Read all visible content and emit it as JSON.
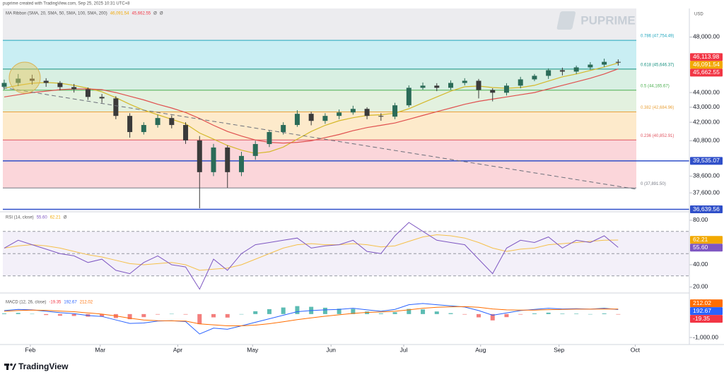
{
  "header": {
    "caption": "puprime created with TradingView.com, Sep 25, 2025 10:31 UTC+8",
    "watermark": "PUPRIME",
    "currency": "USD"
  },
  "chart_data": [
    {
      "type": "candlestick",
      "title": "MA Ribbon (SMA, 20, SMA, 50, SMA, 100, SMA, 200)",
      "readout": [
        "Ø",
        "Ø"
      ],
      "xlim": [
        -0.1,
        49.1
      ],
      "xticks": [
        {
          "value": 1.87,
          "label": "Feb"
        },
        {
          "value": 6.88,
          "label": "Mar"
        },
        {
          "value": 12.44,
          "label": "Apr"
        },
        {
          "value": 17.8,
          "label": "May"
        },
        {
          "value": 23.42,
          "label": "Jun"
        },
        {
          "value": 28.63,
          "label": "Jul"
        },
        {
          "value": 34.14,
          "label": "Aug"
        },
        {
          "value": 39.76,
          "label": "Sep"
        },
        {
          "value": 45.22,
          "label": "Oct"
        }
      ],
      "open": [
        44400,
        44670,
        44970,
        44820,
        44670,
        44380,
        44230,
        43700,
        43600,
        42420,
        41360,
        41820,
        42280,
        41820,
        40820,
        38840,
        40370,
        38840,
        39840,
        40590,
        41360,
        41820,
        42560,
        42090,
        42420,
        42650,
        42890,
        42420,
        42370,
        43130,
        44330,
        44480,
        44330,
        44670,
        44820,
        44180,
        43990,
        44480,
        44920,
        45170,
        45570,
        45470,
        45770,
        45970,
        46170
      ],
      "high": [
        44900,
        45300,
        45250,
        45000,
        44800,
        44600,
        44350,
        43900,
        43750,
        42600,
        42000,
        42500,
        42450,
        42000,
        41100,
        40600,
        40500,
        40100,
        40800,
        41500,
        42000,
        42800,
        42700,
        42600,
        42850,
        43100,
        43000,
        42600,
        43300,
        44500,
        44700,
        44650,
        44850,
        45000,
        44950,
        44300,
        44650,
        45100,
        45300,
        45700,
        45750,
        45900,
        46150,
        46400,
        46350
      ],
      "low": [
        44200,
        44450,
        44550,
        44400,
        44150,
        44000,
        43500,
        43300,
        42200,
        41000,
        41200,
        41650,
        41600,
        40600,
        36700,
        38600,
        37900,
        38600,
        39600,
        40400,
        41200,
        41700,
        41800,
        41900,
        42200,
        42500,
        42200,
        42100,
        42200,
        43000,
        44200,
        44100,
        44200,
        44500,
        43600,
        43400,
        43800,
        44300,
        44800,
        44950,
        45200,
        45300,
        45600,
        45800,
        45900
      ],
      "close": [
        44670,
        44970,
        44820,
        44670,
        44380,
        44230,
        43700,
        43600,
        42420,
        41360,
        41820,
        42280,
        41820,
        40820,
        38840,
        40370,
        38840,
        39840,
        40590,
        41360,
        41820,
        42560,
        42090,
        42420,
        42650,
        42890,
        42420,
        42370,
        43130,
        44330,
        44480,
        44330,
        44670,
        44820,
        44180,
        43990,
        44480,
        44920,
        45170,
        45570,
        45470,
        45770,
        45970,
        46170,
        46113.98
      ],
      "up_color": "#2b6b58",
      "down_color": "#3a3a3a",
      "overlays": [
        {
          "color": "#d4b82a",
          "values": [
            44300,
            44500,
            44650,
            44700,
            44650,
            44500,
            44300,
            44050,
            43650,
            43200,
            42800,
            42500,
            42200,
            41900,
            41300,
            40900,
            40500,
            40200,
            40000,
            40100,
            40400,
            40900,
            41400,
            41800,
            42100,
            42300,
            42450,
            42500,
            42600,
            42900,
            43300,
            43700,
            44100,
            44400,
            44450,
            44350,
            44300,
            44350,
            44500,
            44800,
            45100,
            45300,
            45550,
            45800,
            46091.54
          ]
        },
        {
          "color": "#e0504f",
          "values": [
            43700,
            43850,
            44000,
            44100,
            44200,
            44250,
            44250,
            44200,
            44000,
            43750,
            43500,
            43200,
            42950,
            42650,
            42250,
            41800,
            41400,
            41100,
            40850,
            40700,
            40650,
            40700,
            40800,
            41000,
            41200,
            41450,
            41650,
            41800,
            41950,
            42200,
            42450,
            42700,
            42950,
            43200,
            43400,
            43550,
            43700,
            43850,
            44000,
            44250,
            44500,
            44750,
            45000,
            45300,
            45662.55
          ]
        }
      ],
      "ylim": [
        36500,
        50200
      ],
      "log_scale": true,
      "yticks": [
        {
          "value": 48000,
          "label": "48,000.00"
        },
        {
          "value": 44000,
          "label": "44,000.00"
        },
        {
          "value": 43000,
          "label": "43,000.00"
        },
        {
          "value": 42000,
          "label": "42,000.00"
        },
        {
          "value": 40800,
          "label": "40,800.00"
        },
        {
          "value": 38600,
          "label": "38,600.00"
        },
        {
          "value": 37600,
          "label": "37,600.00"
        }
      ],
      "levels": [
        {
          "value": 47754.49,
          "label": "0.786 (47,754.49)",
          "color": "#22a6bd",
          "fill": "#c9eef3"
        },
        {
          "value": 45646.37,
          "label": "0.618 (45,646.37)",
          "color": "#15907f",
          "fill": "#d8efe2"
        },
        {
          "value": 44165.67,
          "label": "0.5 (44,165.67)",
          "color": "#4caf50",
          "fill": "#e3f1df"
        },
        {
          "value": 42684.96,
          "label": "0.382 (42,684.96)",
          "color": "#e9a23b",
          "fill": "#fdeacb"
        },
        {
          "value": 40852.91,
          "label": "0.236 (40,852.91)",
          "color": "#e05560",
          "fill": "#fbd6da"
        },
        {
          "value": 37891.5,
          "label": "0 (37,891.50)",
          "color": "#787b86"
        }
      ],
      "price_lines": [
        {
          "value": 39535.07,
          "label": "39,535.07",
          "color": "#2f4fc9"
        },
        {
          "value": 36639.56,
          "label": "36,639.56",
          "color": "#2f4fc9"
        }
      ],
      "tags": [
        {
          "value": 46113.98,
          "label": "46,113.98",
          "color": "#f23645"
        },
        {
          "value": 46091.54,
          "label": "46,091.54",
          "color": "#f2a900"
        },
        {
          "value": 45662.55,
          "label": "45,662.55",
          "color": "#f23645"
        }
      ]
    },
    {
      "type": "rsi",
      "title": "RSI (14, close)",
      "readout": [
        "Ø"
      ],
      "series": [
        {
          "color": "#7e57c2",
          "values": [
            55,
            62,
            58,
            54,
            50,
            48,
            42,
            45,
            35,
            32,
            42,
            48,
            40,
            38,
            18,
            45,
            35,
            50,
            58,
            60,
            62,
            64,
            55,
            57,
            58,
            62,
            52,
            50,
            66,
            78,
            70,
            62,
            60,
            58,
            45,
            32,
            55,
            62,
            60,
            65,
            55,
            62,
            60,
            66,
            55.6
          ]
        },
        {
          "color": "#f5c04a",
          "values": [
            55,
            57,
            58,
            57,
            55,
            52,
            49,
            47,
            44,
            41,
            40,
            41,
            42,
            40,
            35,
            36,
            37,
            40,
            45,
            50,
            55,
            58,
            59,
            58,
            58,
            59,
            58,
            56,
            57,
            61,
            65,
            67,
            66,
            64,
            60,
            55,
            52,
            54,
            55,
            58,
            59,
            60,
            61,
            62,
            62.21
          ]
        }
      ],
      "ylim": [
        14.6,
        87.6
      ],
      "yticks": [
        {
          "value": 80,
          "label": "80.00"
        },
        {
          "value": 40,
          "label": "40.00"
        },
        {
          "value": 20,
          "label": "20.00"
        }
      ],
      "band": [
        30,
        70
      ],
      "midline": 50,
      "tags": [
        {
          "value": 62.21,
          "label": "62.21",
          "color": "#f2a900"
        },
        {
          "value": 55.6,
          "label": "55.60",
          "color": "#7e57c2"
        }
      ]
    },
    {
      "type": "macd",
      "title": "MACD (12, 26, close)",
      "histogram": [
        30,
        50,
        10,
        -40,
        -70,
        -80,
        -110,
        -100,
        -170,
        -220,
        -130,
        -20,
        10,
        -20,
        -430,
        -140,
        -150,
        0,
        120,
        210,
        280,
        340,
        310,
        270,
        230,
        220,
        110,
        30,
        80,
        220,
        200,
        110,
        40,
        -20,
        -140,
        -270,
        -130,
        -20,
        30,
        60,
        20,
        20,
        0,
        30,
        -19.35
      ],
      "up_color": "#26a69a",
      "down_color": "#ef5350",
      "series": [
        {
          "color": "#2962ff",
          "values": [
            150,
            200,
            180,
            120,
            60,
            20,
            -60,
            -100,
            -250,
            -400,
            -380,
            -300,
            -280,
            -320,
            -850,
            -600,
            -650,
            -500,
            -350,
            -200,
            -50,
            100,
            150,
            180,
            200,
            250,
            180,
            120,
            200,
            400,
            450,
            400,
            350,
            300,
            150,
            -50,
            50,
            150,
            200,
            250,
            220,
            230,
            210,
            250,
            192.67
          ]
        },
        {
          "color": "#ff6d00",
          "values": [
            120,
            150,
            170,
            160,
            130,
            100,
            50,
            0,
            -80,
            -180,
            -250,
            -280,
            -290,
            -300,
            -420,
            -460,
            -500,
            -500,
            -470,
            -410,
            -330,
            -240,
            -160,
            -90,
            -30,
            30,
            70,
            90,
            120,
            180,
            250,
            290,
            310,
            320,
            290,
            220,
            180,
            170,
            170,
            190,
            200,
            210,
            210,
            220,
            212.02
          ]
        }
      ],
      "ylim": [
        -1300,
        900
      ],
      "yticks": [
        {
          "value": -1000,
          "label": "-1,000.00"
        }
      ],
      "tags": [
        {
          "value": 212.02,
          "label": "212.02",
          "color": "#ff6d00"
        },
        {
          "value": 192.67,
          "label": "192.67",
          "color": "#2962ff"
        },
        {
          "value": -19.35,
          "label": "-19.35",
          "color": "#f23645"
        }
      ]
    }
  ],
  "footer": {
    "brand": "TradingView"
  }
}
